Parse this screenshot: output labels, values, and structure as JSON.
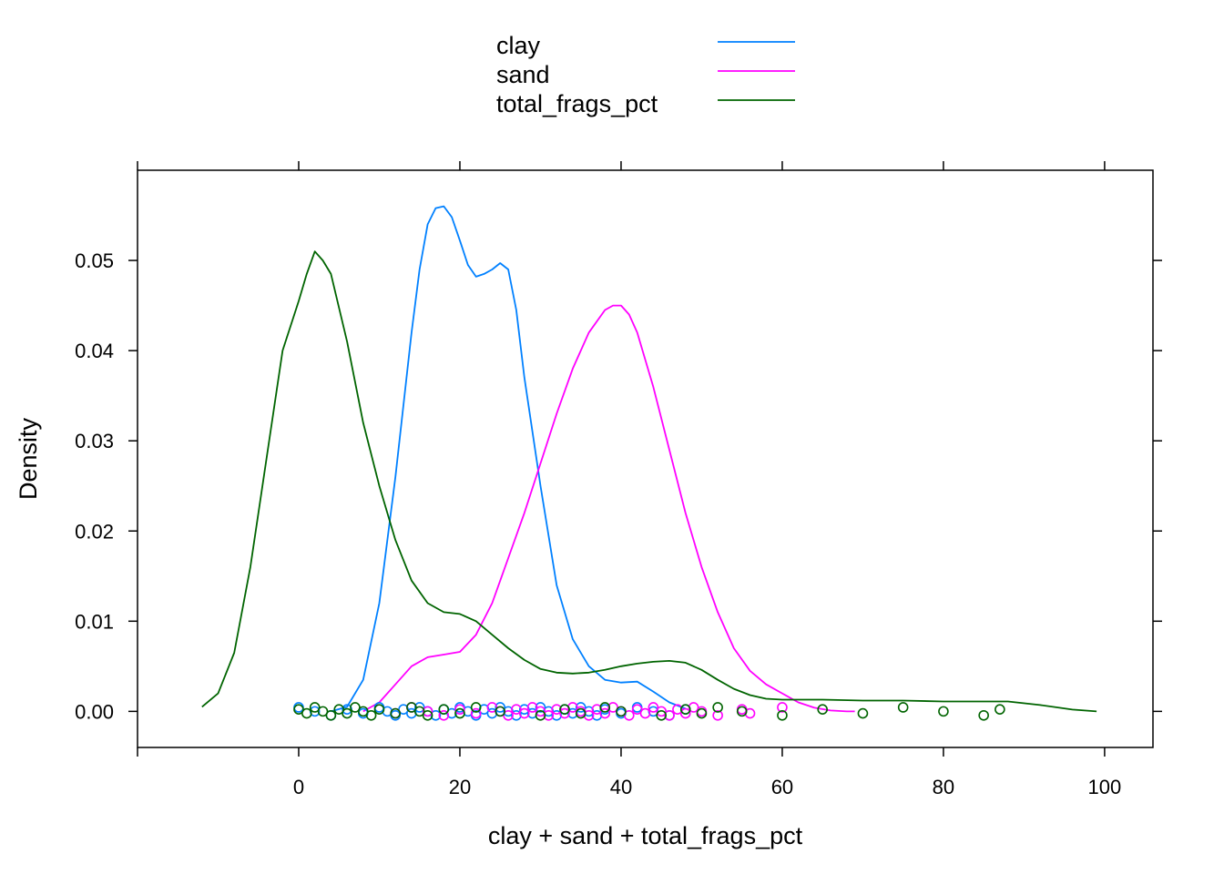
{
  "chart_data": {
    "type": "line",
    "title": "",
    "xlabel": "clay + sand + total_frags_pct",
    "ylabel": "Density",
    "xlim": [
      -20,
      106
    ],
    "ylim": [
      -0.004,
      0.06
    ],
    "xticks": [
      0,
      20,
      40,
      60,
      80,
      100
    ],
    "xtick_labels": [
      "0",
      "20",
      "40",
      "60",
      "80",
      "100"
    ],
    "yticks": [
      0.0,
      0.01,
      0.02,
      0.03,
      0.04,
      0.05
    ],
    "ytick_labels": [
      "0.00",
      "0.01",
      "0.02",
      "0.03",
      "0.04",
      "0.05"
    ],
    "grid": false,
    "legend_position": "top-center",
    "series": [
      {
        "name": "clay",
        "color": "#0080FF",
        "x": [
          4,
          6,
          8,
          10,
          12,
          14,
          15,
          16,
          17,
          18,
          19,
          20,
          21,
          22,
          23,
          24,
          25,
          26,
          27,
          28,
          30,
          32,
          34,
          36,
          38,
          40,
          42,
          44,
          46,
          48
        ],
        "y": [
          0.0,
          0.0005,
          0.0035,
          0.012,
          0.026,
          0.042,
          0.049,
          0.054,
          0.0558,
          0.056,
          0.0548,
          0.0522,
          0.0495,
          0.0482,
          0.0485,
          0.049,
          0.0497,
          0.049,
          0.0445,
          0.037,
          0.025,
          0.014,
          0.008,
          0.005,
          0.0035,
          0.0032,
          0.0033,
          0.0022,
          0.001,
          0.0003
        ],
        "points": [
          0,
          2,
          4,
          6,
          8,
          10,
          11,
          12,
          13,
          14,
          15,
          16,
          17,
          18,
          19,
          20,
          21,
          22,
          23,
          24,
          25,
          26,
          27,
          28,
          29,
          30,
          31,
          32,
          33,
          34,
          35,
          36,
          37,
          38,
          40,
          42,
          44,
          46,
          48
        ]
      },
      {
        "name": "sand",
        "color": "#FF00FF",
        "x": [
          8,
          10,
          12,
          14,
          16,
          18,
          20,
          22,
          24,
          26,
          28,
          30,
          32,
          34,
          36,
          38,
          39,
          40,
          41,
          42,
          44,
          46,
          48,
          50,
          52,
          54,
          56,
          58,
          60,
          62,
          64,
          66,
          68,
          69
        ],
        "y": [
          0.0,
          0.001,
          0.003,
          0.005,
          0.006,
          0.0063,
          0.0066,
          0.0085,
          0.012,
          0.017,
          0.022,
          0.0275,
          0.033,
          0.038,
          0.042,
          0.0445,
          0.045,
          0.045,
          0.044,
          0.042,
          0.036,
          0.029,
          0.022,
          0.016,
          0.011,
          0.007,
          0.0045,
          0.003,
          0.002,
          0.001,
          0.0004,
          0.0001,
          0.0,
          0.0
        ],
        "points": [
          12,
          14,
          16,
          18,
          20,
          22,
          24,
          25,
          26,
          27,
          28,
          29,
          30,
          31,
          32,
          33,
          34,
          35,
          36,
          37,
          38,
          39,
          40,
          41,
          42,
          43,
          44,
          45,
          46,
          47,
          48,
          49,
          50,
          52,
          55,
          56,
          60
        ]
      },
      {
        "name": "total_frags_pct",
        "color": "#006400",
        "x": [
          -12,
          -10,
          -8,
          -6,
          -4,
          -2,
          0,
          1,
          2,
          3,
          4,
          6,
          8,
          10,
          12,
          14,
          16,
          18,
          20,
          22,
          24,
          26,
          28,
          30,
          32,
          34,
          36,
          38,
          40,
          42,
          44,
          46,
          48,
          50,
          52,
          54,
          56,
          58,
          60,
          65,
          70,
          75,
          80,
          85,
          88,
          92,
          96,
          99
        ],
        "y": [
          0.0005,
          0.002,
          0.0065,
          0.016,
          0.028,
          0.04,
          0.0455,
          0.0485,
          0.051,
          0.05,
          0.0485,
          0.041,
          0.032,
          0.025,
          0.019,
          0.0145,
          0.012,
          0.011,
          0.0108,
          0.01,
          0.0085,
          0.007,
          0.0057,
          0.0047,
          0.0043,
          0.0042,
          0.0043,
          0.0046,
          0.005,
          0.0053,
          0.0055,
          0.0056,
          0.0054,
          0.0046,
          0.0035,
          0.0025,
          0.0018,
          0.0014,
          0.0013,
          0.0013,
          0.0012,
          0.0012,
          0.0011,
          0.0011,
          0.0011,
          0.0007,
          0.0002,
          0.0
        ],
        "points": [
          0,
          1,
          2,
          3,
          4,
          5,
          6,
          7,
          8,
          9,
          10,
          12,
          14,
          15,
          16,
          18,
          20,
          22,
          25,
          30,
          33,
          35,
          38,
          40,
          45,
          48,
          50,
          52,
          55,
          60,
          65,
          70,
          75,
          80,
          85,
          87
        ]
      }
    ]
  }
}
